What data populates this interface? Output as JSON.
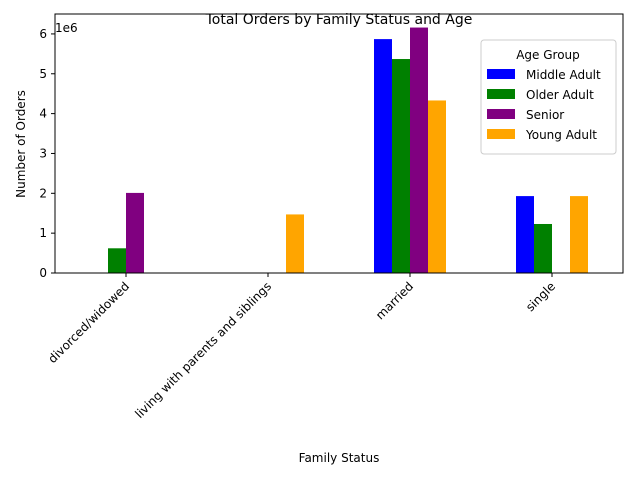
{
  "chart_data": {
    "type": "bar",
    "title": "Total Orders by Family Status and Age",
    "xlabel": "Family Status",
    "ylabel": "Number of Orders",
    "offset_text": "1e6",
    "scale": 1000000,
    "categories": [
      "divorced/widowed",
      "living with parents and siblings",
      "married",
      "single"
    ],
    "series": [
      {
        "name": "Middle Adult",
        "color": "#0000ff",
        "values": [
          0,
          0,
          5870000,
          1930000
        ]
      },
      {
        "name": "Older Adult",
        "color": "#008000",
        "values": [
          620000,
          0,
          5370000,
          1230000
        ]
      },
      {
        "name": "Senior",
        "color": "#800080",
        "values": [
          2010000,
          0,
          6160000,
          0
        ]
      },
      {
        "name": "Young Adult",
        "color": "#ffa500",
        "values": [
          0,
          1470000,
          4330000,
          1930000
        ]
      }
    ],
    "yticks": [
      "0",
      "1",
      "2",
      "3",
      "4",
      "5",
      "6"
    ],
    "ylim": [
      0,
      6500000
    ],
    "legend": {
      "title": "Age Group",
      "position": "top-right"
    },
    "grid": false
  }
}
